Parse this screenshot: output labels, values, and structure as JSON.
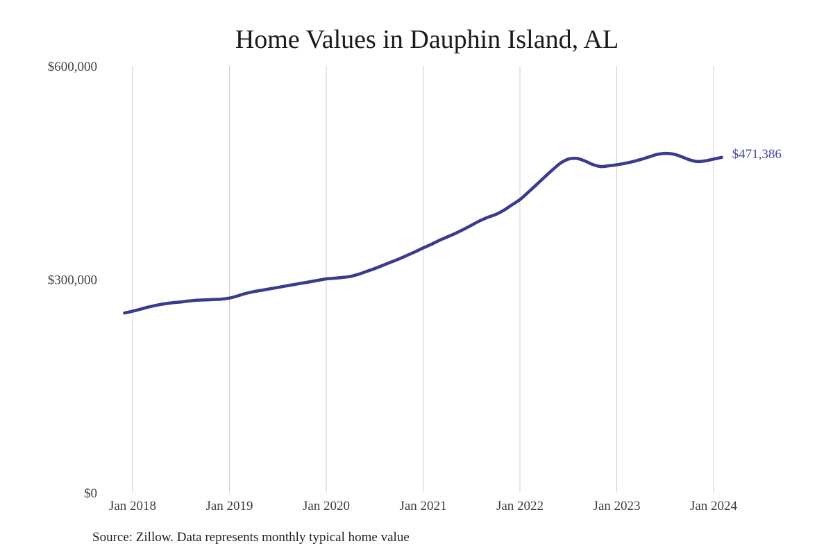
{
  "chart_data": {
    "type": "line",
    "title": "Home Values in Dauphin Island, AL",
    "source_note": "Source: Zillow. Data represents monthly typical home value",
    "end_label": "$471,386",
    "end_value": 471386,
    "xlabel": "",
    "ylabel": "",
    "ylim": [
      0,
      600000
    ],
    "grid": "vertical-only",
    "legend_position": "none",
    "y_ticks": [
      {
        "value": 0,
        "label": "$0"
      },
      {
        "value": 300000,
        "label": "$300,000"
      },
      {
        "value": 600000,
        "label": "$600,000"
      }
    ],
    "x_ticks": [
      "Jan 2018",
      "Jan 2019",
      "Jan 2020",
      "Jan 2021",
      "Jan 2022",
      "Jan 2023",
      "Jan 2024"
    ],
    "colors": {
      "line": "#3a3a8e",
      "end_label": "#4646a0",
      "grid": "#cccccc",
      "title": "#1b1b1b",
      "axis_text": "#3d3d3d",
      "background": "#ffffff"
    },
    "series": [
      {
        "name": "Monthly typical home value",
        "x": [
          "Dec 2017",
          "Jan 2018",
          "Feb 2018",
          "Mar 2018",
          "Apr 2018",
          "May 2018",
          "Jun 2018",
          "Jul 2018",
          "Aug 2018",
          "Sep 2018",
          "Oct 2018",
          "Nov 2018",
          "Dec 2018",
          "Jan 2019",
          "Feb 2019",
          "Mar 2019",
          "Apr 2019",
          "May 2019",
          "Jun 2019",
          "Jul 2019",
          "Aug 2019",
          "Sep 2019",
          "Oct 2019",
          "Nov 2019",
          "Dec 2019",
          "Jan 2020",
          "Feb 2020",
          "Mar 2020",
          "Apr 2020",
          "May 2020",
          "Jun 2020",
          "Jul 2020",
          "Aug 2020",
          "Sep 2020",
          "Oct 2020",
          "Nov 2020",
          "Dec 2020",
          "Jan 2021",
          "Feb 2021",
          "Mar 2021",
          "Apr 2021",
          "May 2021",
          "Jun 2021",
          "Jul 2021",
          "Aug 2021",
          "Sep 2021",
          "Oct 2021",
          "Nov 2021",
          "Dec 2021",
          "Jan 2022",
          "Feb 2022",
          "Mar 2022",
          "Apr 2022",
          "May 2022",
          "Jun 2022",
          "Jul 2022",
          "Aug 2022",
          "Sep 2022",
          "Oct 2022",
          "Nov 2022",
          "Dec 2022",
          "Jan 2023",
          "Feb 2023",
          "Mar 2023",
          "Apr 2023",
          "May 2023",
          "Jun 2023",
          "Jul 2023",
          "Aug 2023",
          "Sep 2023",
          "Oct 2023",
          "Nov 2023",
          "Dec 2023",
          "Jan 2024",
          "Feb 2024"
        ],
        "values": [
          252500,
          255000,
          258000,
          261000,
          263500,
          265500,
          267000,
          268000,
          269500,
          270500,
          271000,
          271500,
          272000,
          273500,
          276500,
          280000,
          282500,
          284500,
          286500,
          288500,
          290500,
          292500,
          294500,
          296500,
          298500,
          300500,
          301500,
          302500,
          304000,
          307000,
          311000,
          315000,
          319500,
          324000,
          328500,
          333500,
          338500,
          344000,
          349000,
          354500,
          359500,
          364500,
          370000,
          376000,
          382000,
          387000,
          391000,
          397000,
          404500,
          412000,
          422000,
          432500,
          443000,
          453500,
          463000,
          469000,
          470000,
          466500,
          461500,
          458500,
          459500,
          461000,
          463000,
          465500,
          468500,
          472000,
          475500,
          477000,
          476000,
          472500,
          468000,
          465500,
          466500,
          469000,
          471386
        ]
      }
    ]
  }
}
